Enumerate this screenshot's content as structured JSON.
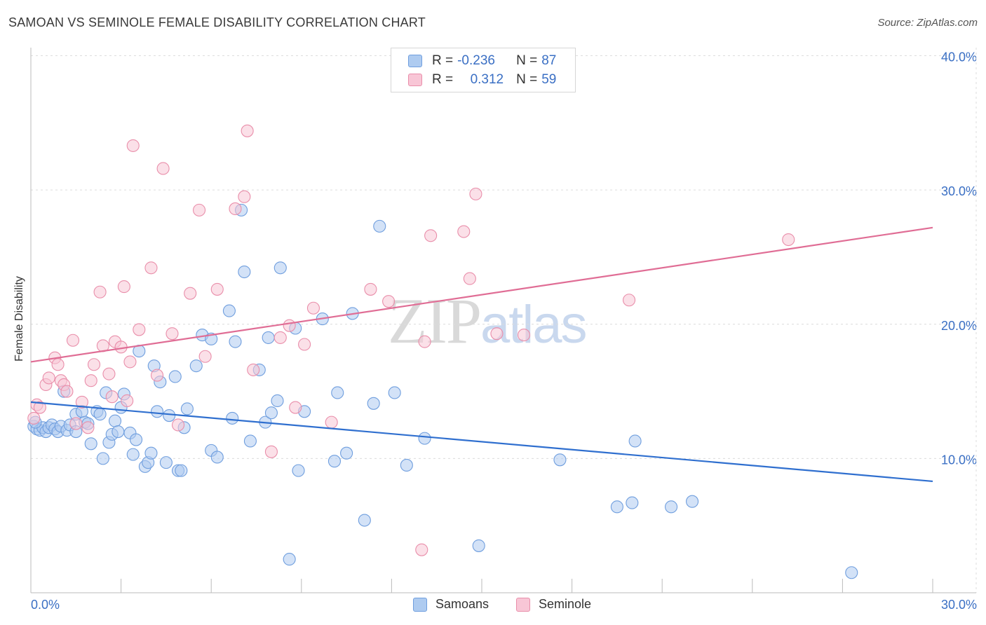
{
  "title": "SAMOAN VS SEMINOLE FEMALE DISABILITY CORRELATION CHART",
  "source": "Source: ZipAtlas.com",
  "watermark": {
    "part1": "ZIP",
    "part2": "atlas"
  },
  "legend": {
    "rows": [
      {
        "r_label": "R = ",
        "r_value": "-0.236",
        "n_label": "N = ",
        "n_value": "87",
        "color": "#aecbf0",
        "border": "#6f9ede"
      },
      {
        "r_label": "R = ",
        "r_value": "0.312",
        "n_label": "N = ",
        "n_value": "59",
        "color": "#f8c6d6",
        "border": "#e98eaa"
      }
    ]
  },
  "bottom_legend": [
    {
      "label": "Samoans",
      "color": "#aecbf0",
      "border": "#6f9ede"
    },
    {
      "label": "Seminole",
      "color": "#f8c6d6",
      "border": "#e98eaa"
    }
  ],
  "chart_data": {
    "type": "scatter",
    "title": "SAMOAN VS SEMINOLE FEMALE DISABILITY CORRELATION CHART",
    "xlabel": "",
    "ylabel": "Female Disability",
    "xlim": [
      0,
      30
    ],
    "ylim": [
      0,
      40
    ],
    "x_tick_labels": [
      "0.0%",
      "30.0%"
    ],
    "y_tick_labels": [
      "10.0%",
      "20.0%",
      "30.0%",
      "40.0%"
    ],
    "y_ticks": [
      10,
      20,
      30,
      40
    ],
    "grid": true,
    "legend_position": "top-center",
    "series": [
      {
        "name": "Samoans",
        "color": "#6f9ede",
        "fill": "#aecbf0",
        "line_color": "#2f6fcf",
        "trend": {
          "x": [
            0,
            30
          ],
          "y": [
            14.2,
            8.3
          ]
        },
        "points": [
          [
            0.1,
            12.4
          ],
          [
            0.2,
            12.2
          ],
          [
            0.3,
            12.1
          ],
          [
            0.4,
            12.3
          ],
          [
            0.5,
            12.0
          ],
          [
            0.6,
            12.3
          ],
          [
            0.7,
            12.5
          ],
          [
            0.8,
            12.2
          ],
          [
            0.9,
            12.0
          ],
          [
            1.0,
            12.4
          ],
          [
            1.1,
            15.0
          ],
          [
            1.2,
            12.1
          ],
          [
            1.3,
            12.5
          ],
          [
            1.5,
            13.3
          ],
          [
            1.5,
            12.0
          ],
          [
            1.7,
            13.5
          ],
          [
            1.8,
            12.7
          ],
          [
            1.9,
            12.6
          ],
          [
            2.0,
            11.1
          ],
          [
            2.2,
            13.5
          ],
          [
            2.3,
            13.3
          ],
          [
            2.4,
            10.0
          ],
          [
            2.5,
            14.9
          ],
          [
            2.6,
            11.2
          ],
          [
            2.7,
            11.8
          ],
          [
            2.8,
            12.8
          ],
          [
            2.9,
            12.0
          ],
          [
            3.0,
            13.8
          ],
          [
            3.1,
            14.8
          ],
          [
            3.3,
            11.9
          ],
          [
            3.4,
            10.3
          ],
          [
            3.5,
            11.4
          ],
          [
            3.6,
            18.0
          ],
          [
            3.8,
            9.4
          ],
          [
            3.9,
            9.7
          ],
          [
            4.0,
            10.4
          ],
          [
            4.1,
            16.9
          ],
          [
            4.2,
            13.5
          ],
          [
            4.3,
            15.7
          ],
          [
            4.5,
            9.7
          ],
          [
            4.6,
            13.2
          ],
          [
            4.8,
            16.1
          ],
          [
            4.9,
            9.1
          ],
          [
            5.0,
            9.1
          ],
          [
            5.1,
            12.3
          ],
          [
            5.2,
            13.7
          ],
          [
            5.5,
            16.9
          ],
          [
            5.7,
            19.2
          ],
          [
            6.0,
            10.6
          ],
          [
            6.2,
            10.1
          ],
          [
            6.0,
            18.9
          ],
          [
            6.6,
            21.0
          ],
          [
            6.7,
            13.0
          ],
          [
            6.8,
            18.7
          ],
          [
            7.0,
            28.5
          ],
          [
            7.1,
            23.9
          ],
          [
            7.3,
            11.3
          ],
          [
            7.6,
            16.6
          ],
          [
            7.8,
            12.7
          ],
          [
            7.9,
            19.0
          ],
          [
            8.0,
            13.4
          ],
          [
            8.2,
            14.3
          ],
          [
            8.3,
            24.2
          ],
          [
            8.6,
            2.5
          ],
          [
            8.8,
            19.7
          ],
          [
            8.9,
            9.1
          ],
          [
            9.1,
            13.5
          ],
          [
            9.7,
            20.4
          ],
          [
            10.1,
            9.8
          ],
          [
            10.2,
            14.9
          ],
          [
            10.5,
            10.4
          ],
          [
            10.7,
            20.8
          ],
          [
            11.1,
            5.4
          ],
          [
            11.4,
            14.1
          ],
          [
            11.6,
            27.3
          ],
          [
            12.1,
            14.9
          ],
          [
            12.5,
            9.5
          ],
          [
            13.1,
            11.5
          ],
          [
            14.9,
            3.5
          ],
          [
            17.6,
            9.9
          ],
          [
            19.5,
            6.4
          ],
          [
            20.0,
            6.7
          ],
          [
            20.1,
            11.3
          ],
          [
            21.3,
            6.4
          ],
          [
            22.0,
            6.8
          ],
          [
            27.3,
            1.5
          ],
          [
            0.15,
            12.7
          ]
        ]
      },
      {
        "name": "Seminole",
        "color": "#e98eaa",
        "fill": "#f8c6d6",
        "line_color": "#e06d95",
        "trend": {
          "x": [
            0,
            30
          ],
          "y": [
            17.2,
            27.2
          ]
        },
        "points": [
          [
            0.2,
            14.0
          ],
          [
            0.3,
            13.8
          ],
          [
            0.5,
            15.5
          ],
          [
            0.6,
            16.0
          ],
          [
            0.8,
            17.5
          ],
          [
            0.9,
            17.0
          ],
          [
            1.0,
            15.8
          ],
          [
            1.1,
            15.5
          ],
          [
            1.2,
            15.0
          ],
          [
            1.4,
            18.8
          ],
          [
            1.5,
            12.6
          ],
          [
            1.7,
            14.2
          ],
          [
            1.9,
            12.3
          ],
          [
            2.0,
            15.8
          ],
          [
            2.1,
            17.0
          ],
          [
            2.3,
            22.4
          ],
          [
            2.4,
            18.4
          ],
          [
            2.6,
            16.3
          ],
          [
            2.7,
            14.6
          ],
          [
            2.8,
            18.7
          ],
          [
            3.0,
            18.3
          ],
          [
            3.1,
            22.8
          ],
          [
            3.2,
            14.3
          ],
          [
            3.3,
            17.2
          ],
          [
            3.4,
            33.3
          ],
          [
            3.6,
            19.6
          ],
          [
            4.0,
            24.2
          ],
          [
            4.2,
            16.2
          ],
          [
            4.4,
            31.6
          ],
          [
            4.7,
            19.3
          ],
          [
            4.9,
            12.5
          ],
          [
            5.3,
            22.3
          ],
          [
            5.6,
            28.5
          ],
          [
            5.8,
            17.6
          ],
          [
            6.2,
            22.6
          ],
          [
            6.8,
            28.6
          ],
          [
            7.1,
            29.5
          ],
          [
            7.2,
            34.4
          ],
          [
            7.4,
            16.6
          ],
          [
            8.0,
            10.5
          ],
          [
            8.3,
            19.0
          ],
          [
            8.6,
            19.9
          ],
          [
            8.8,
            13.8
          ],
          [
            9.1,
            18.5
          ],
          [
            9.4,
            21.2
          ],
          [
            10.0,
            12.7
          ],
          [
            11.3,
            22.6
          ],
          [
            11.9,
            21.7
          ],
          [
            13.1,
            18.7
          ],
          [
            13.3,
            26.6
          ],
          [
            14.4,
            26.9
          ],
          [
            14.6,
            23.4
          ],
          [
            14.8,
            29.7
          ],
          [
            15.5,
            19.3
          ],
          [
            16.4,
            19.2
          ],
          [
            19.9,
            21.8
          ],
          [
            13.0,
            3.2
          ],
          [
            25.2,
            26.3
          ],
          [
            0.1,
            13.0
          ]
        ]
      }
    ]
  }
}
